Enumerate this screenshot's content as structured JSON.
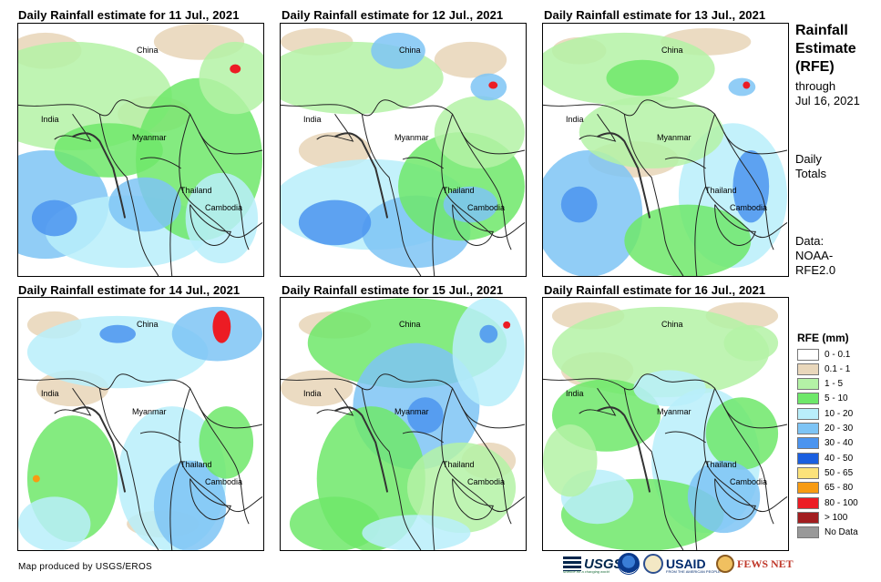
{
  "panels": [
    {
      "title": "Daily Rainfall estimate for 11 Jul., 2021"
    },
    {
      "title": "Daily Rainfall estimate for 12 Jul., 2021"
    },
    {
      "title": "Daily Rainfall estimate for 13 Jul., 2021"
    },
    {
      "title": "Daily Rainfall estimate for 14 Jul., 2021"
    },
    {
      "title": "Daily Rainfall estimate for 15 Jul., 2021"
    },
    {
      "title": "Daily Rainfall estimate for 16 Jul., 2021"
    }
  ],
  "places": {
    "china": "China",
    "india": "India",
    "myanmar": "Myanmar",
    "thailand": "Thailand",
    "cambodia": "Cambodia"
  },
  "sidebar": {
    "title_line1": "Rainfall",
    "title_line2": "Estimate",
    "title_line3": "(RFE)",
    "through": "through",
    "through_date": "Jul 16, 2021",
    "daily": "Daily",
    "totals": "Totals",
    "data_label": "Data:",
    "data_source1": "NOAA-",
    "data_source2": "RFE2.0"
  },
  "legend": {
    "title": "RFE (mm)",
    "items": [
      {
        "label": "0 - 0.1",
        "color": "#ffffff"
      },
      {
        "label": "0.1 - 1",
        "color": "#e9d7bb"
      },
      {
        "label": "1 - 5",
        "color": "#b4f2a6"
      },
      {
        "label": "5 - 10",
        "color": "#6ee86a"
      },
      {
        "label": "10 - 20",
        "color": "#b9eefa"
      },
      {
        "label": "20 - 30",
        "color": "#7ec4f5"
      },
      {
        "label": "30 - 40",
        "color": "#4b94ef"
      },
      {
        "label": "40 - 50",
        "color": "#1a5fe0"
      },
      {
        "label": "50 - 65",
        "color": "#fbe27a"
      },
      {
        "label": "65 - 80",
        "color": "#f79b12"
      },
      {
        "label": "80 - 100",
        "color": "#ec1c24"
      },
      {
        "label": "> 100",
        "color": "#a21d1f"
      },
      {
        "label": "No Data",
        "color": "#999999"
      }
    ]
  },
  "credit": "Map produced by USGS/EROS",
  "logos": {
    "usgs": "USGS",
    "usgs_tag": "science for a changing world",
    "usaid": "USAID",
    "usaid_tag": "FROM THE AMERICAN PEOPLE",
    "fews": "FEWS NET"
  }
}
